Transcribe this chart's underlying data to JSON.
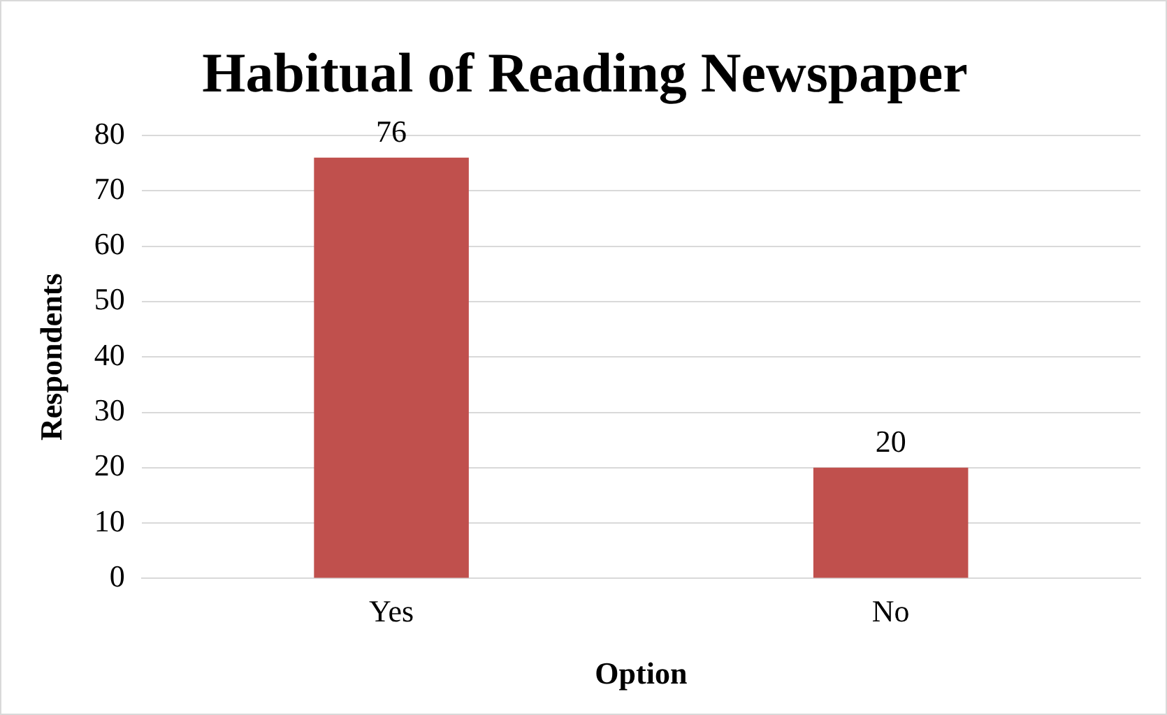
{
  "chart_data": {
    "type": "bar",
    "title": "Habitual of Reading Newspaper",
    "xlabel": "Option",
    "ylabel": "Respondents",
    "categories": [
      "Yes",
      "No"
    ],
    "values": [
      76,
      20
    ],
    "color": "#c0504d",
    "ylim": [
      0,
      80
    ],
    "yticks": [
      0,
      10,
      20,
      30,
      40,
      50,
      60,
      70,
      80
    ],
    "grid": "y",
    "data_labels": true
  }
}
